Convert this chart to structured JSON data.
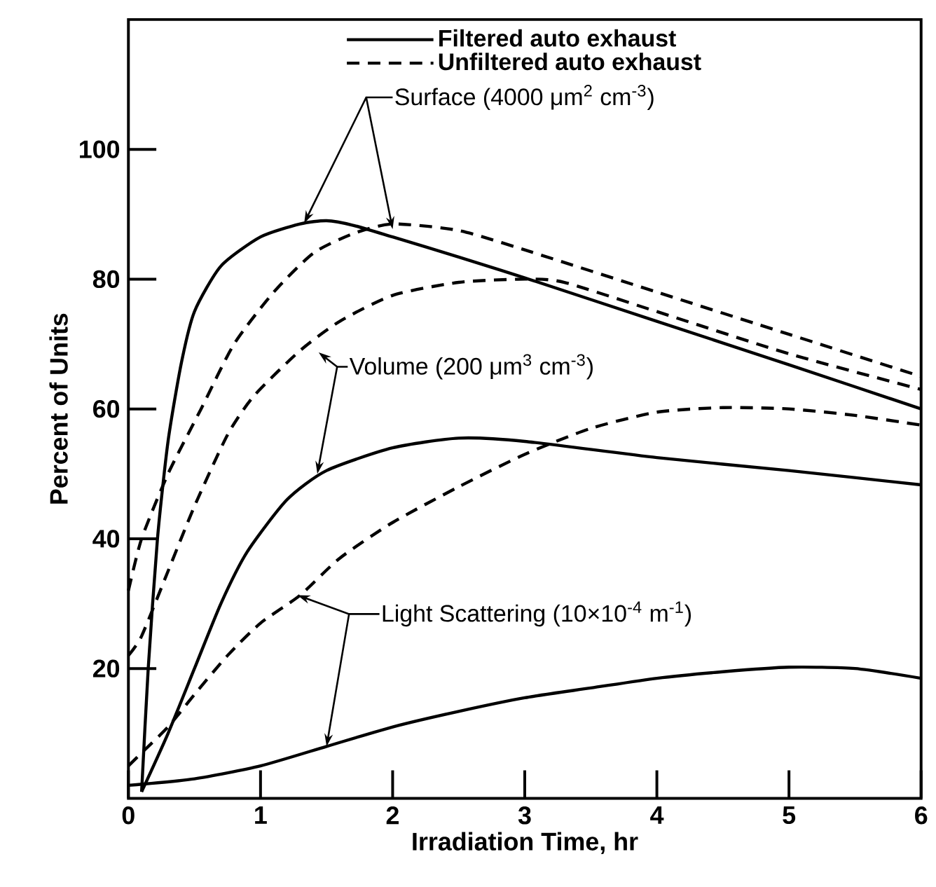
{
  "chart_data": {
    "type": "line",
    "xlabel": "Irradiation Time, hr",
    "ylabel": "Percent of Units",
    "xlim": [
      0,
      6
    ],
    "ylim": [
      0,
      120
    ],
    "xticks": [
      0,
      1,
      2,
      3,
      4,
      5,
      6
    ],
    "yticks": [
      20,
      40,
      60,
      80,
      100
    ],
    "legend": "top",
    "grid": false,
    "series": [
      {
        "name": "Filtered auto exhaust",
        "color": "#000000",
        "line_style": "solid",
        "x": [
          0.1,
          0.15,
          0.22,
          0.3,
          0.4,
          0.5,
          0.7,
          1,
          1.3,
          1.5,
          1.7,
          2,
          2.5,
          3,
          4,
          5,
          6
        ],
        "values": [
          1,
          20,
          40,
          55,
          67,
          75,
          82,
          86.5,
          88.5,
          89,
          88.3,
          86.5,
          83.4,
          80.2,
          73.5,
          66.8,
          60
        ]
      },
      {
        "name": "Unfiltered auto exhaust",
        "color": "#000000",
        "line_style": "dashed",
        "x": [
          0,
          0.1,
          0.3,
          0.55,
          0.8,
          1.1,
          1.4,
          1.7,
          2,
          2.5,
          3,
          4,
          5,
          6
        ],
        "values": [
          32,
          40,
          50,
          60,
          70,
          78,
          84,
          87,
          88.5,
          87.5,
          84.5,
          78,
          71.5,
          65
        ]
      },
      {
        "color": "#000000",
        "line_style": "solid",
        "x": [
          0.1,
          0.3,
          0.5,
          0.7,
          0.9,
          1.2,
          1.5,
          2,
          2.5,
          3,
          4,
          5,
          6
        ],
        "values": [
          1,
          10,
          20,
          30,
          38,
          46,
          50.5,
          54,
          55.5,
          55,
          52.5,
          50.5,
          48.3
        ]
      },
      {
        "color": "#000000",
        "line_style": "dashed",
        "x": [
          0,
          0.1,
          0.3,
          0.5,
          0.75,
          0.95,
          1.3,
          1.6,
          2,
          2.5,
          3,
          3.3,
          4,
          5,
          6
        ],
        "values": [
          22,
          25,
          35,
          45,
          56,
          62,
          69,
          73.5,
          77.5,
          79.5,
          80,
          79.5,
          75,
          68.5,
          63
        ]
      },
      {
        "color": "#000000",
        "line_style": "solid",
        "x": [
          0,
          0.5,
          1,
          1.5,
          2,
          2.5,
          3,
          3.5,
          4,
          4.5,
          5,
          5.5,
          6
        ],
        "values": [
          2,
          3,
          5,
          8,
          11,
          13.4,
          15.5,
          17,
          18.5,
          19.5,
          20.2,
          20,
          18.5
        ]
      },
      {
        "color": "#000000",
        "line_style": "dashed",
        "x": [
          0,
          0.1,
          0.3,
          0.5,
          0.75,
          1,
          1.3,
          1.6,
          2,
          2.5,
          3,
          3.5,
          4,
          4.5,
          5,
          5.5,
          6
        ],
        "values": [
          5,
          7,
          11,
          16,
          22,
          27,
          31.3,
          37,
          42.5,
          48,
          53,
          57,
          59.5,
          60.2,
          60,
          59,
          57.5
        ]
      }
    ],
    "annotations": [
      {
        "text": "Surface (4000 μm$^{2}$ cm$^{-3}$)",
        "x": 1.33,
        "y": 88.6
      },
      {
        "text": "Volume (200 μm$^{3}$ cm$^{-3}$)",
        "x": 1.43,
        "y": 50
      },
      {
        "text": "Light Scattering (10×10$^{-4}$ m$^{-1}$)",
        "x": 1.28,
        "y": 31.3
      }
    ]
  }
}
